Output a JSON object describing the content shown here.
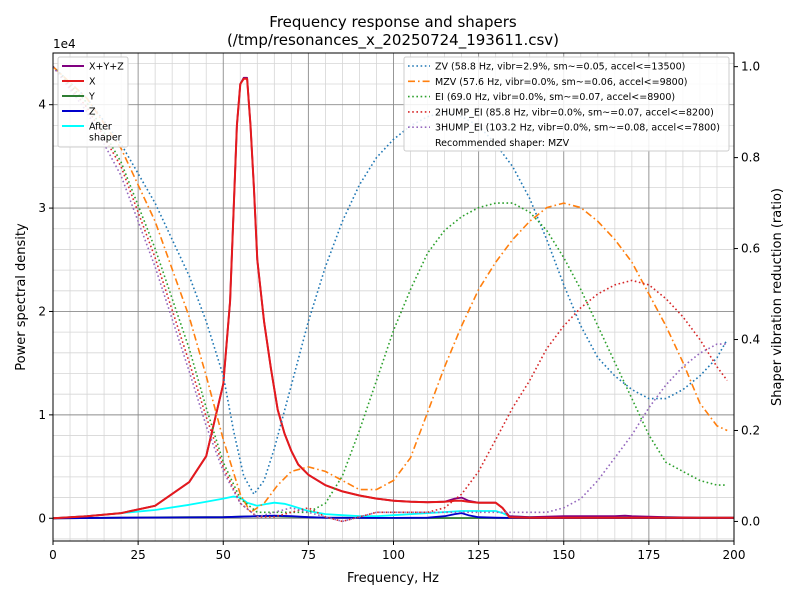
{
  "chart_data": {
    "type": "line",
    "title_line1": "Frequency response and shapers",
    "title_line2": "(/tmp/resonances_x_20250724_193611.csv)",
    "xlabel": "Frequency, Hz",
    "ylabel_left": "Power spectral density",
    "ylabel_right": "Shaper vibration reduction (ratio)",
    "y_left_offset": "1e4",
    "xlim": [
      0,
      200
    ],
    "ylim_left": [
      -0.22,
      4.5
    ],
    "ylim_right": [
      -0.043,
      1.03
    ],
    "x_ticks": [
      0,
      25,
      50,
      75,
      100,
      125,
      150,
      175,
      200
    ],
    "y_left_ticks": [
      0,
      1,
      2,
      3,
      4
    ],
    "y_right_ticks": [
      0.0,
      0.2,
      0.4,
      0.6,
      0.8,
      1.0
    ],
    "grid": true,
    "psd_legend_placement": "upper-left",
    "shaper_legend_placement": "upper-right",
    "recommended_text": "Recommended shaper: MZV",
    "psd_series": [
      {
        "name": "X+Y+Z",
        "color": "#800080",
        "style": "solid",
        "x": [
          0,
          10,
          20,
          30,
          40,
          45,
          50,
          52,
          54,
          55,
          56,
          57,
          58,
          59,
          60,
          62,
          64,
          66,
          68,
          70,
          72,
          75,
          80,
          85,
          90,
          95,
          100,
          105,
          110,
          115,
          118,
          120,
          122,
          125,
          130,
          132,
          134,
          140,
          150,
          160,
          165,
          168,
          170,
          175,
          180,
          190,
          200
        ],
        "y": [
          0,
          0.02,
          0.05,
          0.12,
          0.35,
          0.6,
          1.3,
          2.1,
          3.8,
          4.2,
          4.26,
          4.26,
          3.8,
          3.2,
          2.5,
          1.9,
          1.45,
          1.05,
          0.82,
          0.65,
          0.52,
          0.42,
          0.32,
          0.26,
          0.22,
          0.19,
          0.17,
          0.16,
          0.155,
          0.16,
          0.19,
          0.2,
          0.17,
          0.15,
          0.15,
          0.1,
          0.02,
          0.01,
          0.02,
          0.02,
          0.02,
          0.025,
          0.02,
          0.015,
          0.01,
          0.005,
          0.005
        ]
      },
      {
        "name": "X",
        "color": "#e41a1c",
        "style": "solid",
        "x": [
          0,
          10,
          20,
          30,
          40,
          45,
          50,
          52,
          54,
          55,
          56,
          57,
          58,
          59,
          60,
          62,
          64,
          66,
          68,
          70,
          72,
          75,
          80,
          85,
          90,
          95,
          100,
          105,
          110,
          115,
          118,
          120,
          122,
          125,
          130,
          132,
          134,
          140,
          150,
          160,
          170,
          180,
          190,
          200
        ],
        "y": [
          0,
          0.02,
          0.05,
          0.12,
          0.35,
          0.6,
          1.3,
          2.1,
          3.8,
          4.2,
          4.25,
          4.25,
          3.8,
          3.2,
          2.5,
          1.9,
          1.45,
          1.05,
          0.82,
          0.65,
          0.52,
          0.42,
          0.32,
          0.26,
          0.22,
          0.19,
          0.17,
          0.16,
          0.155,
          0.16,
          0.17,
          0.17,
          0.16,
          0.15,
          0.15,
          0.1,
          0.01,
          0.005,
          0.005,
          0.005,
          0.005,
          0.005,
          0.005,
          0.005
        ]
      },
      {
        "name": "Y",
        "color": "#2e7d32",
        "style": "solid",
        "x": [
          0,
          20,
          40,
          50,
          55,
          60,
          65,
          70,
          75,
          80,
          90,
          100,
          120,
          140,
          160,
          180,
          200
        ],
        "y": [
          0,
          0.005,
          0.01,
          0.01,
          0.015,
          0.02,
          0.02,
          0.015,
          0.01,
          0.005,
          0.003,
          0.002,
          0.002,
          0.002,
          0.002,
          0.002,
          0.002
        ]
      },
      {
        "name": "Z",
        "color": "#0000cc",
        "style": "solid",
        "x": [
          0,
          20,
          40,
          50,
          55,
          60,
          65,
          70,
          75,
          80,
          90,
          100,
          110,
          115,
          118,
          120,
          122,
          125,
          130,
          135,
          140,
          160,
          180,
          200
        ],
        "y": [
          0,
          0.005,
          0.008,
          0.01,
          0.015,
          0.02,
          0.025,
          0.02,
          0.01,
          0.005,
          0.003,
          0.003,
          0.005,
          0.02,
          0.04,
          0.05,
          0.03,
          0.01,
          0.005,
          0.003,
          0.002,
          0.002,
          0.002,
          0.002
        ]
      },
      {
        "name": "After\nshaper",
        "color": "#00ffff",
        "style": "solid",
        "x": [
          0,
          10,
          20,
          30,
          40,
          45,
          50,
          53,
          55,
          57,
          60,
          63,
          65,
          68,
          70,
          75,
          80,
          85,
          90,
          95,
          100,
          110,
          120,
          125,
          130,
          132,
          134,
          140,
          150,
          160,
          170,
          180,
          190,
          200
        ],
        "y": [
          0,
          0.02,
          0.05,
          0.08,
          0.13,
          0.16,
          0.19,
          0.21,
          0.2,
          0.15,
          0.12,
          0.14,
          0.15,
          0.14,
          0.12,
          0.07,
          0.04,
          0.03,
          0.02,
          0.02,
          0.03,
          0.05,
          0.07,
          0.07,
          0.07,
          0.05,
          0.02,
          0.01,
          0.01,
          0.01,
          0.01,
          0.01,
          0.005,
          0.005
        ]
      }
    ],
    "shaper_series": [
      {
        "name": "ZV (58.8 Hz, vibr=2.9%, sm~=0.05, accel<=13500)",
        "color": "#1f77b4",
        "style": "dotted",
        "x": [
          0,
          10,
          20,
          30,
          40,
          45,
          50,
          53,
          56,
          59,
          62,
          65,
          70,
          75,
          80,
          85,
          90,
          95,
          100,
          105,
          110,
          115,
          120,
          125,
          130,
          135,
          140,
          145,
          150,
          155,
          160,
          165,
          170,
          175,
          180,
          185,
          190,
          195,
          198
        ],
        "y": [
          1.0,
          0.93,
          0.83,
          0.7,
          0.54,
          0.44,
          0.32,
          0.2,
          0.1,
          0.06,
          0.09,
          0.16,
          0.3,
          0.44,
          0.56,
          0.66,
          0.74,
          0.8,
          0.84,
          0.87,
          0.89,
          0.9,
          0.89,
          0.87,
          0.83,
          0.78,
          0.71,
          0.62,
          0.52,
          0.43,
          0.36,
          0.32,
          0.29,
          0.27,
          0.27,
          0.29,
          0.32,
          0.36,
          0.4
        ]
      },
      {
        "name": "MZV (57.6 Hz, vibr=0.0%, sm~=0.06, accel<=9800)",
        "color": "#ff7f0e",
        "style": "dashdot",
        "x": [
          0,
          10,
          20,
          30,
          40,
          45,
          50,
          55,
          58,
          62,
          66,
          70,
          75,
          80,
          85,
          90,
          95,
          100,
          105,
          110,
          115,
          120,
          125,
          130,
          135,
          140,
          145,
          150,
          155,
          160,
          165,
          170,
          175,
          180,
          185,
          190,
          195,
          198
        ],
        "y": [
          1.0,
          0.93,
          0.82,
          0.66,
          0.45,
          0.32,
          0.18,
          0.06,
          0.02,
          0.04,
          0.08,
          0.11,
          0.12,
          0.11,
          0.09,
          0.07,
          0.07,
          0.09,
          0.14,
          0.24,
          0.34,
          0.43,
          0.51,
          0.57,
          0.62,
          0.66,
          0.69,
          0.7,
          0.69,
          0.66,
          0.62,
          0.57,
          0.5,
          0.43,
          0.35,
          0.26,
          0.21,
          0.2
        ]
      },
      {
        "name": "EI (69.0 Hz, vibr=0.0%, sm~=0.07, accel<=8900)",
        "color": "#2ca02c",
        "style": "dotted",
        "x": [
          0,
          10,
          20,
          30,
          40,
          45,
          50,
          55,
          60,
          65,
          70,
          75,
          80,
          85,
          90,
          95,
          100,
          105,
          110,
          115,
          120,
          125,
          130,
          135,
          140,
          145,
          150,
          155,
          160,
          165,
          170,
          175,
          180,
          185,
          190,
          195,
          198
        ],
        "y": [
          1.0,
          0.92,
          0.79,
          0.6,
          0.38,
          0.25,
          0.13,
          0.05,
          0.02,
          0.02,
          0.02,
          0.02,
          0.04,
          0.1,
          0.2,
          0.31,
          0.42,
          0.51,
          0.59,
          0.64,
          0.67,
          0.69,
          0.7,
          0.7,
          0.68,
          0.64,
          0.58,
          0.51,
          0.43,
          0.35,
          0.27,
          0.19,
          0.13,
          0.11,
          0.09,
          0.08,
          0.08
        ]
      },
      {
        "name": "2HUMP_EI (85.8 Hz, vibr=0.0%, sm~=0.07, accel<=8200)",
        "color": "#d62728",
        "style": "dotted",
        "x": [
          0,
          10,
          20,
          30,
          40,
          45,
          50,
          55,
          60,
          65,
          70,
          75,
          80,
          85,
          90,
          95,
          100,
          105,
          110,
          115,
          120,
          125,
          130,
          135,
          140,
          145,
          150,
          155,
          160,
          165,
          170,
          175,
          180,
          185,
          190,
          195,
          198
        ],
        "y": [
          1.0,
          0.91,
          0.78,
          0.58,
          0.35,
          0.23,
          0.12,
          0.04,
          0.01,
          0.01,
          0.02,
          0.03,
          0.01,
          0.0,
          0.01,
          0.02,
          0.02,
          0.02,
          0.02,
          0.03,
          0.06,
          0.11,
          0.18,
          0.25,
          0.31,
          0.38,
          0.43,
          0.47,
          0.5,
          0.52,
          0.53,
          0.52,
          0.49,
          0.45,
          0.4,
          0.34,
          0.31
        ]
      },
      {
        "name": "3HUMP_EI (103.2 Hz, vibr=0.0%, sm~=0.08, accel<=7800)",
        "color": "#9467bd",
        "style": "dotted",
        "x": [
          0,
          10,
          20,
          30,
          40,
          45,
          50,
          55,
          60,
          65,
          70,
          75,
          80,
          85,
          90,
          95,
          100,
          105,
          110,
          115,
          120,
          125,
          130,
          135,
          140,
          145,
          150,
          155,
          160,
          165,
          170,
          175,
          180,
          185,
          190,
          195,
          198
        ],
        "y": [
          1.0,
          0.9,
          0.76,
          0.56,
          0.33,
          0.21,
          0.11,
          0.04,
          0.01,
          0.02,
          0.03,
          0.02,
          0.01,
          0.0,
          0.01,
          0.02,
          0.02,
          0.02,
          0.02,
          0.02,
          0.02,
          0.02,
          0.02,
          0.02,
          0.02,
          0.02,
          0.03,
          0.05,
          0.09,
          0.14,
          0.19,
          0.25,
          0.3,
          0.34,
          0.37,
          0.39,
          0.39
        ]
      }
    ]
  }
}
